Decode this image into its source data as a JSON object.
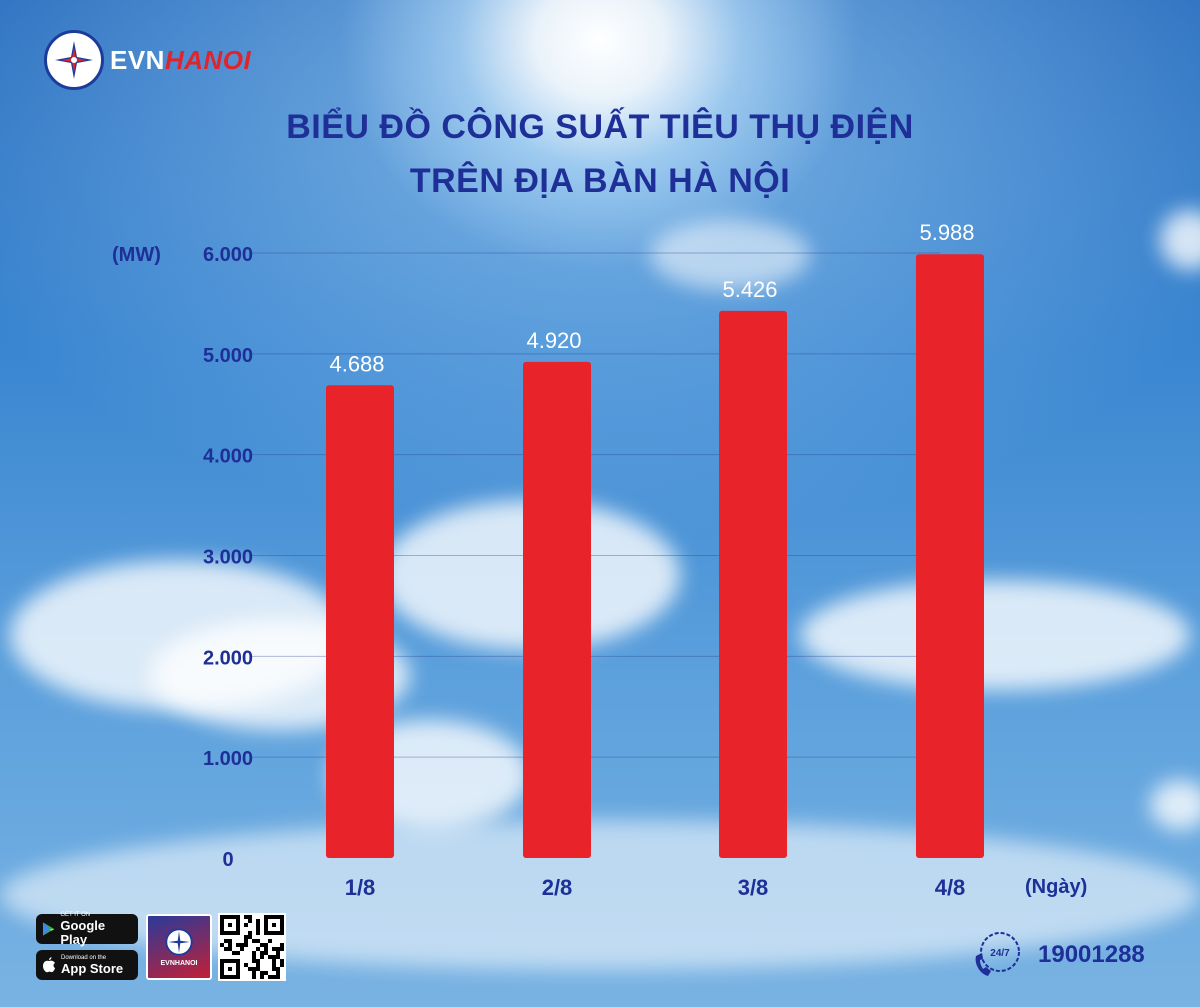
{
  "brand": {
    "name_part1": "EVN",
    "name_part2": "HANOI",
    "colors": {
      "primary_blue": "#1f2f98",
      "brand_red": "#e0242b"
    }
  },
  "title": {
    "line1": "BIỂU ĐỒ CÔNG SUẤT TIÊU THỤ ĐIỆN",
    "line2": "TRÊN ĐỊA BÀN HÀ NỘI"
  },
  "chart_data": {
    "type": "bar",
    "categories": [
      "1/8",
      "2/8",
      "3/8",
      "4/8"
    ],
    "values": [
      4688,
      4920,
      5426,
      5988
    ],
    "value_labels": [
      "4.688",
      "4.920",
      "5.426",
      "5.988"
    ],
    "ylabel": "(MW)",
    "xlabel": "(Ngày)",
    "ylim": [
      0,
      6000
    ],
    "yticks": [
      0,
      1000,
      2000,
      3000,
      4000,
      5000,
      6000
    ],
    "ytick_labels": [
      "0",
      "1.000",
      "2.000",
      "3.000",
      "4.000",
      "5.000",
      "6.000"
    ],
    "grid": true,
    "bar_color": "#e8232a"
  },
  "footer": {
    "google_play": {
      "small": "GET IT ON",
      "large": "Google Play"
    },
    "app_store": {
      "small": "Download on the",
      "large": "App Store"
    },
    "app_tile_label": "EVNHANOI",
    "hotline_badge": "24/7",
    "hotline": "19001288"
  }
}
